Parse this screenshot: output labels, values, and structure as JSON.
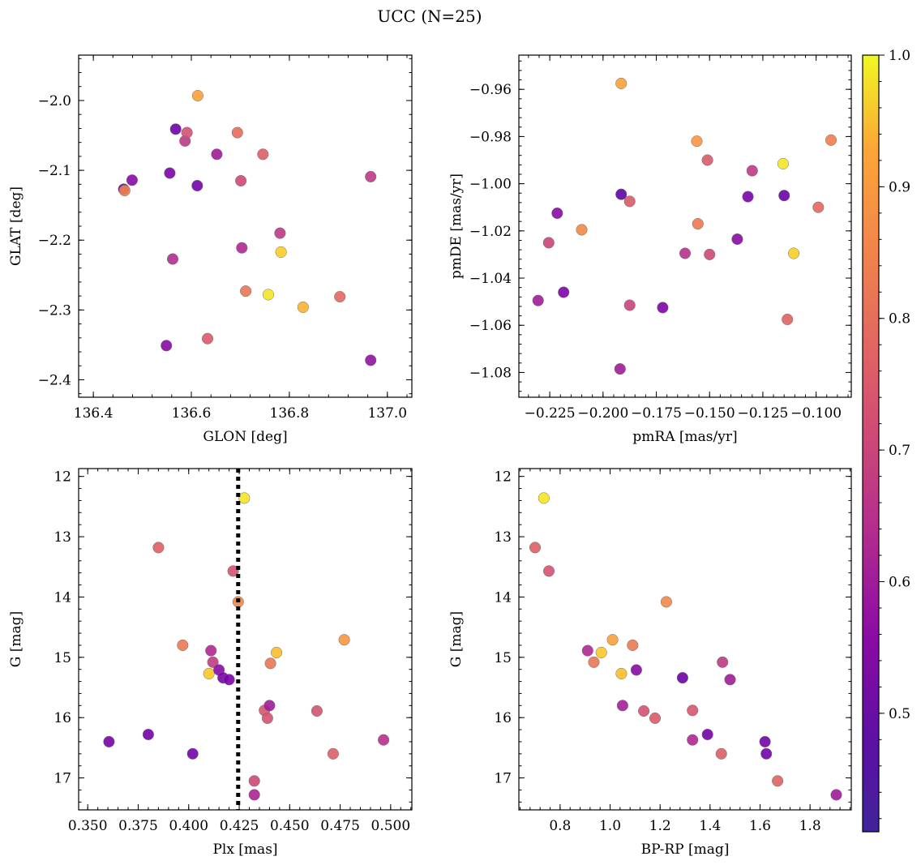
{
  "suptitle": "UCC (N=25)",
  "chart_data": [
    {
      "type": "scatter",
      "xlabel": "GLON [deg]",
      "ylabel": "GLAT [deg]",
      "xlim": [
        136.37,
        137.05
      ],
      "ylim": [
        -2.425,
        -1.935
      ],
      "y_inverted": false,
      "xticks": [
        136.4,
        136.6,
        136.8,
        137.0
      ],
      "xtick_labels": [
        "136.4",
        "136.6",
        "136.8",
        "137.0"
      ],
      "yticks": [
        -2.4,
        -2.3,
        -2.2,
        -2.1,
        -2.0
      ],
      "ytick_labels": [
        "−2.4",
        "−2.3",
        "−2.2",
        "−2.1",
        "−2.0"
      ],
      "points": [
        {
          "x": 136.462,
          "y": -2.127,
          "c": 0.43
        },
        {
          "x": 136.464,
          "y": -2.129,
          "c": 0.79
        },
        {
          "x": 136.479,
          "y": -2.114,
          "c": 0.5
        },
        {
          "x": 136.556,
          "y": -2.104,
          "c": 0.48
        },
        {
          "x": 136.549,
          "y": -2.351,
          "c": 0.5
        },
        {
          "x": 136.562,
          "y": -2.227,
          "c": 0.59
        },
        {
          "x": 136.568,
          "y": -2.041,
          "c": 0.45
        },
        {
          "x": 136.587,
          "y": -2.058,
          "c": 0.62
        },
        {
          "x": 136.591,
          "y": -2.046,
          "c": 0.68
        },
        {
          "x": 136.612,
          "y": -2.122,
          "c": 0.46
        },
        {
          "x": 136.613,
          "y": -1.993,
          "c": 0.85
        },
        {
          "x": 136.633,
          "y": -2.341,
          "c": 0.7
        },
        {
          "x": 136.652,
          "y": -2.077,
          "c": 0.55
        },
        {
          "x": 136.694,
          "y": -2.046,
          "c": 0.74
        },
        {
          "x": 136.701,
          "y": -2.115,
          "c": 0.66
        },
        {
          "x": 136.703,
          "y": -2.211,
          "c": 0.58
        },
        {
          "x": 136.711,
          "y": -2.273,
          "c": 0.76
        },
        {
          "x": 136.746,
          "y": -2.077,
          "c": 0.71
        },
        {
          "x": 136.757,
          "y": -2.278,
          "c": 0.97
        },
        {
          "x": 136.781,
          "y": -2.19,
          "c": 0.62
        },
        {
          "x": 136.783,
          "y": -2.217,
          "c": 0.93
        },
        {
          "x": 136.828,
          "y": -2.296,
          "c": 0.88
        },
        {
          "x": 136.903,
          "y": -2.281,
          "c": 0.73
        },
        {
          "x": 136.966,
          "y": -2.109,
          "c": 0.62
        },
        {
          "x": 136.966,
          "y": -2.372,
          "c": 0.52
        }
      ]
    },
    {
      "type": "scatter",
      "xlabel": "pmRA [mas/yr]",
      "ylabel": "pmDE [mas/yr]",
      "xlim": [
        -0.2395,
        -0.0835
      ],
      "ylim": [
        -1.0905,
        -0.9455
      ],
      "y_inverted": false,
      "xticks": [
        -0.225,
        -0.2,
        -0.175,
        -0.15,
        -0.125,
        -0.1
      ],
      "xtick_labels": [
        "−0.225",
        "−0.200",
        "−0.175",
        "−0.150",
        "−0.125",
        "−0.100"
      ],
      "yticks": [
        -1.08,
        -1.06,
        -1.04,
        -1.02,
        -1.0,
        -0.98,
        -0.96
      ],
      "ytick_labels": [
        "−1.08",
        "−1.06",
        "−1.04",
        "−1.02",
        "−1.00",
        "−0.98",
        "−0.96"
      ],
      "points": [
        {
          "x": -0.2305,
          "y": -1.0495,
          "c": 0.55
        },
        {
          "x": -0.2255,
          "y": -1.025,
          "c": 0.65
        },
        {
          "x": -0.2215,
          "y": -1.0125,
          "c": 0.5
        },
        {
          "x": -0.2185,
          "y": -1.046,
          "c": 0.48
        },
        {
          "x": -0.21,
          "y": -1.0195,
          "c": 0.8
        },
        {
          "x": -0.1915,
          "y": -0.9575,
          "c": 0.85
        },
        {
          "x": -0.1915,
          "y": -1.0045,
          "c": 0.43
        },
        {
          "x": -0.192,
          "y": -1.0785,
          "c": 0.55
        },
        {
          "x": -0.1875,
          "y": -1.0075,
          "c": 0.7
        },
        {
          "x": -0.1875,
          "y": -1.0515,
          "c": 0.65
        },
        {
          "x": -0.172,
          "y": -1.0525,
          "c": 0.48
        },
        {
          "x": -0.1615,
          "y": -1.0295,
          "c": 0.6
        },
        {
          "x": -0.156,
          "y": -0.982,
          "c": 0.83
        },
        {
          "x": -0.1555,
          "y": -1.017,
          "c": 0.77
        },
        {
          "x": -0.151,
          "y": -0.99,
          "c": 0.7
        },
        {
          "x": -0.15,
          "y": -1.03,
          "c": 0.66
        },
        {
          "x": -0.137,
          "y": -1.0235,
          "c": 0.5
        },
        {
          "x": -0.132,
          "y": -1.0055,
          "c": 0.47
        },
        {
          "x": -0.13,
          "y": -0.9945,
          "c": 0.62
        },
        {
          "x": -0.1155,
          "y": -0.9915,
          "c": 0.97
        },
        {
          "x": -0.115,
          "y": -1.005,
          "c": 0.45
        },
        {
          "x": -0.1135,
          "y": -1.0575,
          "c": 0.72
        },
        {
          "x": -0.1105,
          "y": -1.0295,
          "c": 0.93
        },
        {
          "x": -0.099,
          "y": -1.01,
          "c": 0.73
        },
        {
          "x": -0.093,
          "y": -0.9815,
          "c": 0.78
        }
      ]
    },
    {
      "type": "scatter",
      "xlabel": "Plx [mas]",
      "ylabel": "G [mag]",
      "xlim": [
        0.3455,
        0.5105
      ],
      "ylim": [
        17.53,
        11.87
      ],
      "y_inverted": true,
      "xticks": [
        0.35,
        0.375,
        0.4,
        0.425,
        0.45,
        0.475,
        0.5
      ],
      "xtick_labels": [
        "0.350",
        "0.375",
        "0.400",
        "0.425",
        "0.450",
        "0.475",
        "0.500"
      ],
      "yticks": [
        12,
        13,
        14,
        15,
        16,
        17
      ],
      "ytick_labels": [
        "12",
        "13",
        "14",
        "15",
        "16",
        "17"
      ],
      "vline": {
        "x": 0.4245,
        "style": "dotted"
      },
      "points": [
        {
          "x": 0.3605,
          "y": 16.4,
          "c": 0.47
        },
        {
          "x": 0.38,
          "y": 16.28,
          "c": 0.46
        },
        {
          "x": 0.385,
          "y": 13.18,
          "c": 0.71
        },
        {
          "x": 0.397,
          "y": 14.8,
          "c": 0.77
        },
        {
          "x": 0.402,
          "y": 16.6,
          "c": 0.46
        },
        {
          "x": 0.41,
          "y": 15.27,
          "c": 0.92
        },
        {
          "x": 0.411,
          "y": 14.89,
          "c": 0.58
        },
        {
          "x": 0.412,
          "y": 15.08,
          "c": 0.63
        },
        {
          "x": 0.415,
          "y": 15.21,
          "c": 0.5
        },
        {
          "x": 0.417,
          "y": 15.34,
          "c": 0.47
        },
        {
          "x": 0.42,
          "y": 15.37,
          "c": 0.48
        },
        {
          "x": 0.422,
          "y": 13.57,
          "c": 0.68
        },
        {
          "x": 0.4245,
          "y": 14.08,
          "c": 0.8
        },
        {
          "x": 0.4275,
          "y": 12.36,
          "c": 0.97
        },
        {
          "x": 0.4325,
          "y": 17.05,
          "c": 0.66
        },
        {
          "x": 0.4325,
          "y": 17.28,
          "c": 0.57
        },
        {
          "x": 0.4375,
          "y": 15.88,
          "c": 0.69
        },
        {
          "x": 0.439,
          "y": 16.01,
          "c": 0.68
        },
        {
          "x": 0.44,
          "y": 15.8,
          "c": 0.55
        },
        {
          "x": 0.4405,
          "y": 15.1,
          "c": 0.76
        },
        {
          "x": 0.4435,
          "y": 14.92,
          "c": 0.9
        },
        {
          "x": 0.4635,
          "y": 15.89,
          "c": 0.68
        },
        {
          "x": 0.4715,
          "y": 16.6,
          "c": 0.71
        },
        {
          "x": 0.477,
          "y": 14.71,
          "c": 0.83
        },
        {
          "x": 0.4965,
          "y": 16.37,
          "c": 0.6
        }
      ]
    },
    {
      "type": "scatter",
      "xlabel": "BP-RP [mag]",
      "ylabel": "G [mag]",
      "xlim": [
        0.635,
        1.965
      ],
      "ylim": [
        17.53,
        11.87
      ],
      "y_inverted": true,
      "xticks": [
        0.8,
        1.0,
        1.2,
        1.4,
        1.6,
        1.8
      ],
      "xtick_labels": [
        "0.8",
        "1.0",
        "1.2",
        "1.4",
        "1.6",
        "1.8"
      ],
      "yticks": [
        12,
        13,
        14,
        15,
        16,
        17
      ],
      "ytick_labels": [
        "12",
        "13",
        "14",
        "15",
        "16",
        "17"
      ],
      "points": [
        {
          "x": 0.7,
          "y": 13.18,
          "c": 0.71
        },
        {
          "x": 0.735,
          "y": 12.36,
          "c": 0.97
        },
        {
          "x": 0.755,
          "y": 13.57,
          "c": 0.68
        },
        {
          "x": 0.91,
          "y": 14.89,
          "c": 0.58
        },
        {
          "x": 0.935,
          "y": 15.08,
          "c": 0.76
        },
        {
          "x": 0.965,
          "y": 14.92,
          "c": 0.92
        },
        {
          "x": 1.01,
          "y": 14.71,
          "c": 0.85
        },
        {
          "x": 1.045,
          "y": 15.27,
          "c": 0.9
        },
        {
          "x": 1.05,
          "y": 15.8,
          "c": 0.56
        },
        {
          "x": 1.09,
          "y": 14.8,
          "c": 0.77
        },
        {
          "x": 1.105,
          "y": 15.21,
          "c": 0.5
        },
        {
          "x": 1.135,
          "y": 15.89,
          "c": 0.68
        },
        {
          "x": 1.18,
          "y": 16.01,
          "c": 0.7
        },
        {
          "x": 1.225,
          "y": 14.08,
          "c": 0.8
        },
        {
          "x": 1.29,
          "y": 15.34,
          "c": 0.45
        },
        {
          "x": 1.33,
          "y": 15.88,
          "c": 0.69
        },
        {
          "x": 1.33,
          "y": 16.37,
          "c": 0.58
        },
        {
          "x": 1.39,
          "y": 16.28,
          "c": 0.46
        },
        {
          "x": 1.45,
          "y": 15.08,
          "c": 0.62
        },
        {
          "x": 1.445,
          "y": 16.6,
          "c": 0.71
        },
        {
          "x": 1.48,
          "y": 15.37,
          "c": 0.55
        },
        {
          "x": 1.62,
          "y": 16.4,
          "c": 0.46
        },
        {
          "x": 1.625,
          "y": 16.6,
          "c": 0.46
        },
        {
          "x": 1.67,
          "y": 17.05,
          "c": 0.72
        },
        {
          "x": 1.905,
          "y": 17.28,
          "c": 0.55
        }
      ]
    }
  ],
  "colorbar": {
    "cmap": "plasma",
    "range": [
      0.41,
      1.0
    ],
    "ticks": [
      0.5,
      0.6,
      0.7,
      0.8,
      0.9,
      1.0
    ],
    "tick_labels": [
      "0.5",
      "0.6",
      "0.7",
      "0.8",
      "0.9",
      "1.0"
    ]
  }
}
